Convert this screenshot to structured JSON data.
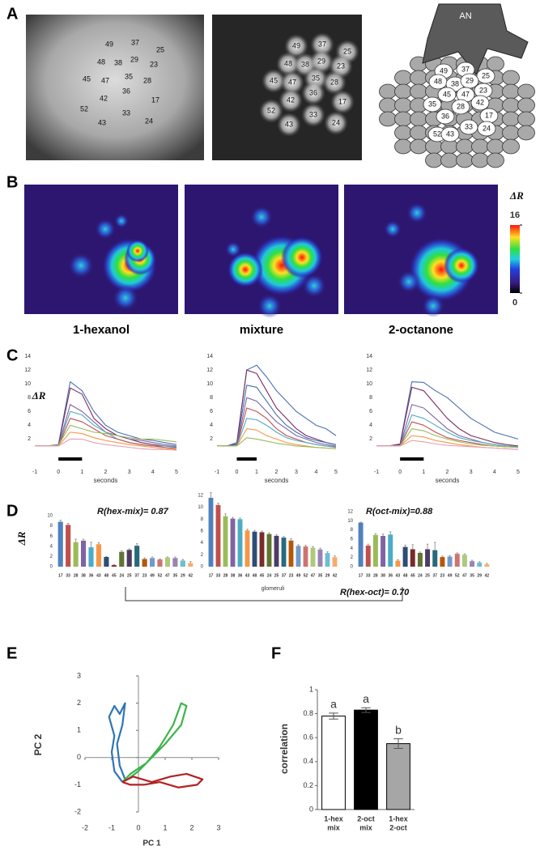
{
  "panel_labels": [
    "A",
    "B",
    "C",
    "D",
    "E",
    "F"
  ],
  "panel_a": {
    "glomeruli": [
      "49",
      "37",
      "25",
      "48",
      "38",
      "29",
      "23",
      "45",
      "47",
      "35",
      "28",
      "42",
      "36",
      "17",
      "52",
      "33",
      "43",
      "24"
    ],
    "nerve": "AN"
  },
  "panel_b": {
    "odors": [
      "1-hexanol",
      "mixture",
      "2-octanone"
    ],
    "colorbar": {
      "label": "ΔR",
      "lim": [
        0,
        16
      ],
      "ticks": [
        0,
        16
      ]
    }
  },
  "panel_d": {
    "annotation": "R(hex-oct)= 0.70"
  },
  "chart_data": [
    {
      "type": "line",
      "x": [
        -1,
        -0.5,
        0,
        0.5,
        1,
        1.5,
        2,
        2.5,
        3,
        3.5,
        4,
        4.5,
        5
      ],
      "xlim": [
        -1,
        5
      ],
      "xticks": [
        -1,
        0,
        1,
        2,
        3,
        4,
        5
      ],
      "ylim": [
        -1,
        14
      ],
      "yticks": [
        2,
        4,
        6,
        8,
        10,
        12,
        14
      ],
      "xlabel": "seconds",
      "ylabel": "ΔR",
      "stimulus": [
        0,
        1
      ],
      "series": [
        {
          "color": "#4a6fb0",
          "values": [
            1,
            1,
            1.2,
            10.3,
            9,
            6,
            4,
            3,
            2.5,
            2,
            1.8,
            1.5,
            1.2
          ]
        },
        {
          "color": "#7b2d5f",
          "values": [
            1,
            1,
            1.1,
            9.4,
            8.5,
            5,
            3.5,
            2.5,
            2,
            1.5,
            1.2,
            1,
            0.8
          ]
        },
        {
          "color": "#8064a2",
          "values": [
            1,
            1,
            1,
            7,
            6,
            4.5,
            3,
            2.5,
            2,
            1.8,
            1.5,
            1.2,
            1
          ]
        },
        {
          "color": "#4bacc6",
          "values": [
            1,
            1,
            1,
            6,
            5.5,
            4,
            3,
            2,
            1.5,
            1.2,
            1,
            1,
            0.9
          ]
        },
        {
          "color": "#c0504d",
          "values": [
            1,
            1,
            1,
            5,
            4.5,
            3.5,
            2.5,
            2,
            1.5,
            1.2,
            1,
            0.8,
            0.6
          ]
        },
        {
          "color": "#9bbb59",
          "values": [
            1,
            1,
            1.1,
            4,
            3.5,
            3,
            2.8,
            2.5,
            2.2,
            2,
            2,
            1.8,
            1.6
          ]
        },
        {
          "color": "#f79646",
          "values": [
            1,
            1,
            1,
            3,
            2.8,
            2.2,
            1.8,
            1.5,
            1.2,
            1,
            0.8,
            0.6,
            0.5
          ]
        },
        {
          "color": "#e6a0b0",
          "values": [
            1,
            1,
            1,
            2,
            2,
            1.5,
            1.2,
            1,
            0.8,
            0.6,
            0.5,
            0.5,
            0.4
          ]
        }
      ]
    },
    {
      "type": "line",
      "x": [
        -1,
        -0.5,
        0,
        0.5,
        1,
        1.5,
        2,
        2.5,
        3,
        3.5,
        4,
        4.5,
        5
      ],
      "xlim": [
        -1,
        5
      ],
      "xticks": [
        -1,
        0,
        1,
        2,
        3,
        4,
        5
      ],
      "ylim": [
        -1,
        14
      ],
      "yticks": [
        2,
        4,
        6,
        8,
        10,
        12,
        14
      ],
      "xlabel": "seconds",
      "stimulus": [
        0,
        1
      ],
      "series": [
        {
          "color": "#4a6fb0",
          "values": [
            1,
            1,
            1.5,
            12,
            12.7,
            11,
            9,
            7.5,
            6,
            5,
            4,
            3.5,
            2.5
          ]
        },
        {
          "color": "#7b2d5f",
          "values": [
            1,
            1,
            1.3,
            12,
            11.5,
            9,
            6.5,
            5,
            3.5,
            2.5,
            2,
            1.5,
            1.2
          ]
        },
        {
          "color": "#3f6fb0",
          "values": [
            1,
            1,
            1.2,
            9.8,
            9.5,
            7.5,
            5.5,
            4,
            3,
            2.2,
            1.8,
            1.5,
            1.2
          ]
        },
        {
          "color": "#8064a2",
          "values": [
            1,
            1,
            1,
            8,
            7.5,
            6,
            4.5,
            3.5,
            2.5,
            2,
            1.5,
            1.2,
            1
          ]
        },
        {
          "color": "#c0504d",
          "values": [
            1,
            1,
            1,
            6.5,
            6,
            5,
            3.5,
            2.5,
            2,
            1.5,
            1.2,
            1,
            0.8
          ]
        },
        {
          "color": "#4bacc6",
          "values": [
            1,
            1,
            1,
            5,
            4.8,
            4,
            3,
            2.2,
            1.8,
            1.5,
            1.2,
            1,
            0.9
          ]
        },
        {
          "color": "#f79646",
          "values": [
            1,
            1,
            1,
            3.5,
            3.3,
            2.5,
            2,
            1.5,
            1.2,
            1,
            0.8,
            0.7,
            0.6
          ]
        },
        {
          "color": "#9bbb59",
          "values": [
            1,
            1,
            1,
            2.2,
            2,
            1.7,
            1.4,
            1.2,
            1,
            0.9,
            0.8,
            0.7,
            0.6
          ]
        }
      ]
    },
    {
      "type": "line",
      "x": [
        -1,
        -0.5,
        0,
        0.5,
        1,
        1.5,
        2,
        2.5,
        3,
        3.5,
        4,
        4.5,
        5
      ],
      "xlim": [
        -1,
        5
      ],
      "xticks": [
        -1,
        0,
        1,
        2,
        3,
        4,
        5
      ],
      "ylim": [
        -1,
        14
      ],
      "yticks": [
        2,
        4,
        6,
        8,
        10,
        12,
        14
      ],
      "xlabel": "seconds",
      "stimulus": [
        0,
        1
      ],
      "series": [
        {
          "color": "#4a6fb0",
          "values": [
            1,
            1,
            1.3,
            10.3,
            10.2,
            9,
            8,
            6.5,
            5,
            4,
            3,
            2.5,
            2
          ]
        },
        {
          "color": "#7b2d5f",
          "values": [
            1,
            1,
            1.2,
            9.5,
            9,
            7,
            5,
            3.5,
            2.5,
            2,
            1.5,
            1.2,
            1
          ]
        },
        {
          "color": "#8064a2",
          "values": [
            1,
            1,
            1,
            7,
            6.5,
            5,
            3.5,
            2.5,
            2,
            1.5,
            1.2,
            1,
            0.9
          ]
        },
        {
          "color": "#4bacc6",
          "values": [
            1,
            1,
            1,
            5.5,
            5,
            4,
            3,
            2.2,
            1.8,
            1.5,
            1.2,
            1,
            0.9
          ]
        },
        {
          "color": "#c0504d",
          "values": [
            1,
            1,
            1,
            4.5,
            4,
            3,
            2.2,
            1.8,
            1.5,
            1.2,
            1,
            0.9,
            0.8
          ]
        },
        {
          "color": "#9bbb59",
          "values": [
            1,
            1,
            1,
            3.5,
            3.2,
            2.5,
            2,
            1.6,
            1.3,
            1.1,
            1,
            0.9,
            0.8
          ]
        },
        {
          "color": "#f79646",
          "values": [
            1,
            1,
            1,
            2.5,
            2.3,
            1.8,
            1.5,
            1.2,
            1,
            0.8,
            0.7,
            0.6,
            0.5
          ]
        },
        {
          "color": "#e6a0b0",
          "values": [
            1,
            1,
            1,
            1.8,
            1.6,
            1.3,
            1.1,
            1,
            0.9,
            0.8,
            0.7,
            0.6,
            0.5
          ]
        }
      ]
    },
    {
      "type": "bar",
      "categories": [
        "17",
        "33",
        "28",
        "38",
        "36",
        "43",
        "48",
        "45",
        "24",
        "25",
        "37",
        "23",
        "49",
        "52",
        "47",
        "35",
        "29",
        "42"
      ],
      "values": [
        8.8,
        8.2,
        4.8,
        5.1,
        3.8,
        4.4,
        1.9,
        0.3,
        2.9,
        3.3,
        4.1,
        1.5,
        1.7,
        1.4,
        1.8,
        1.7,
        1.2,
        0.7
      ],
      "errors": [
        0.3,
        0.3,
        0.6,
        0.3,
        1.0,
        0.3,
        0.1,
        0.1,
        0.2,
        0.2,
        0.4,
        0.2,
        0.2,
        0.1,
        0.1,
        0.2,
        0.2,
        0.3
      ],
      "colors": [
        "#4f81bd",
        "#c0504d",
        "#9bbb59",
        "#8064a2",
        "#4bacc6",
        "#f79646",
        "#2c4d75",
        "#772c2a",
        "#5f7530",
        "#4d3b62",
        "#276a7c",
        "#b65708",
        "#729aca",
        "#cd7371",
        "#afc97a",
        "#9983b5",
        "#6fbdd1",
        "#f9ab6b"
      ],
      "ylim": [
        0,
        10
      ],
      "yticks": [
        0,
        2,
        4,
        6,
        8,
        10
      ],
      "ylabel": "ΔR",
      "annotation": "R(hex-mix)= 0.87"
    },
    {
      "type": "bar",
      "categories": [
        "17",
        "33",
        "28",
        "38",
        "36",
        "43",
        "48",
        "45",
        "24",
        "25",
        "37",
        "23",
        "49",
        "52",
        "47",
        "35",
        "29",
        "42"
      ],
      "values": [
        11.6,
        10.4,
        8.5,
        8.1,
        8.0,
        6.1,
        5.9,
        5.8,
        5.5,
        5.2,
        4.9,
        4.4,
        3.5,
        3.4,
        3.2,
        2.9,
        2.3,
        1.6
      ],
      "errors": [
        0.9,
        0.3,
        0.4,
        0.2,
        0.2,
        0.2,
        0.2,
        0.2,
        0.2,
        0.2,
        0.2,
        0.3,
        0.2,
        0.2,
        0.2,
        0.2,
        0.2,
        0.2
      ],
      "colors": [
        "#4f81bd",
        "#c0504d",
        "#9bbb59",
        "#8064a2",
        "#4bacc6",
        "#f79646",
        "#2c4d75",
        "#772c2a",
        "#5f7530",
        "#4d3b62",
        "#276a7c",
        "#b65708",
        "#729aca",
        "#cd7371",
        "#afc97a",
        "#9983b5",
        "#6fbdd1",
        "#f9ab6b"
      ],
      "ylim": [
        0,
        12
      ],
      "yticks": [
        0,
        2,
        4,
        6,
        8,
        10,
        12
      ],
      "xlabel": "glomeruli"
    },
    {
      "type": "bar",
      "categories": [
        "17",
        "33",
        "28",
        "38",
        "36",
        "43",
        "48",
        "45",
        "24",
        "25",
        "37",
        "23",
        "49",
        "52",
        "47",
        "35",
        "29",
        "42"
      ],
      "values": [
        9.6,
        4.6,
        6.9,
        6.7,
        7.0,
        1.3,
        4.3,
        3.8,
        3.0,
        3.8,
        3.6,
        2.1,
        2.2,
        2.8,
        2.6,
        1.2,
        0.9,
        0.5
      ],
      "errors": [
        0.1,
        0.3,
        0.3,
        0.4,
        0.6,
        0.2,
        0.4,
        1.0,
        0.2,
        1.1,
        1.7,
        0.2,
        0.2,
        0.2,
        0.2,
        0.2,
        0.2,
        0.2
      ],
      "colors": [
        "#4f81bd",
        "#c0504d",
        "#9bbb59",
        "#8064a2",
        "#4bacc6",
        "#f79646",
        "#2c4d75",
        "#772c2a",
        "#5f7530",
        "#4d3b62",
        "#276a7c",
        "#b65708",
        "#729aca",
        "#cd7371",
        "#afc97a",
        "#9983b5",
        "#6fbdd1",
        "#f9ab6b"
      ],
      "ylim": [
        0,
        12
      ],
      "yticks": [
        0,
        2,
        4,
        6,
        8,
        10,
        12
      ],
      "annotation": "R(oct-mix)=0.88"
    },
    {
      "type": "line",
      "xlim": [
        -2,
        3
      ],
      "ylim": [
        -2,
        3
      ],
      "xticks": [
        -2,
        -1,
        0,
        1,
        2,
        3
      ],
      "yticks": [
        -2,
        -1,
        0,
        1,
        2,
        3
      ],
      "xlabel": "PC 1",
      "ylabel": "PC 2",
      "axes": "origin",
      "series": [
        {
          "color": "#2e75b6",
          "x": [
            -0.6,
            -0.9,
            -1.0,
            -0.9,
            -1.1,
            -0.9,
            -0.7,
            -0.5,
            -0.6,
            -0.8,
            -0.7,
            -0.5
          ],
          "values": [
            -0.9,
            -0.5,
            0.2,
            0.8,
            1.5,
            1.9,
            1.6,
            2.0,
            1.2,
            0.5,
            -0.3,
            -0.8
          ]
        },
        {
          "color": "#3cb44b",
          "x": [
            -0.6,
            -0.3,
            0.3,
            0.8,
            1.3,
            1.6,
            1.8,
            1.6,
            1.0,
            0.4,
            0,
            -0.4
          ],
          "values": [
            -0.9,
            -0.6,
            -0.2,
            0.4,
            1.2,
            2.0,
            1.9,
            1.2,
            0.5,
            -0.1,
            -0.5,
            -0.8
          ]
        },
        {
          "color": "#b22222",
          "x": [
            -0.6,
            -0.2,
            0.5,
            1.2,
            1.8,
            2.4,
            2.2,
            1.5,
            0.8,
            0.2,
            -0.3,
            -0.6
          ],
          "values": [
            -0.9,
            -0.7,
            -0.9,
            -0.7,
            -0.6,
            -0.8,
            -1.0,
            -1.1,
            -0.9,
            -1.0,
            -1.0,
            -0.9
          ]
        }
      ]
    },
    {
      "type": "bar",
      "categories": [
        [
          "1-hex",
          "mix"
        ],
        [
          "2-oct",
          "mix"
        ],
        [
          "1-hex",
          "2-oct"
        ]
      ],
      "values": [
        0.78,
        0.83,
        0.55
      ],
      "errors": [
        0.025,
        0.02,
        0.04
      ],
      "colors": [
        "#ffffff",
        "#000000",
        "#a6a6a6"
      ],
      "letters": [
        "a",
        "a",
        "b"
      ],
      "ylim": [
        0,
        1
      ],
      "yticks": [
        0,
        0.2,
        0.4,
        0.6,
        0.8,
        1
      ],
      "ylabel": "correlation",
      "axes": "frame"
    }
  ]
}
